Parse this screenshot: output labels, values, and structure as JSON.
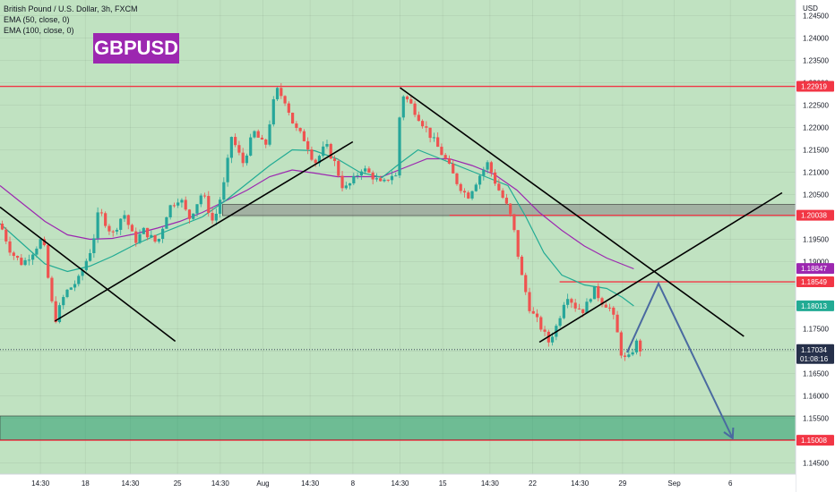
{
  "chart_data": {
    "type": "candlestick",
    "title": "British Pound / U.S. Dollar, 3h, FXCM",
    "symbol_badge": "GBPUSD",
    "indicators": [
      "EMA (50, close, 0)",
      "EMA (100, close, 0)"
    ],
    "currency_label": "USD",
    "y_ticks": [
      1.245,
      1.24,
      1.235,
      1.23,
      1.225,
      1.22,
      1.215,
      1.21,
      1.205,
      1.2,
      1.195,
      1.19,
      1.185,
      1.18,
      1.175,
      1.17,
      1.165,
      1.16,
      1.155,
      1.15,
      1.145
    ],
    "y_tick_labels": [
      "1.24500",
      "1.24000",
      "1.23500",
      "1.23000",
      "1.22500",
      "1.22000",
      "1.21500",
      "1.21000",
      "1.20500",
      "1.20000",
      "1.19500",
      "1.19000",
      "1.18500",
      "1.18000",
      "1.17500",
      "1.17000",
      "1.16500",
      "1.16000",
      "1.15500",
      "1.15000",
      "1.14500"
    ],
    "ylim": [
      1.1425,
      1.2485
    ],
    "x_ticks": [
      {
        "label": "14:30",
        "t": 0.9
      },
      {
        "label": "18",
        "t": 1.9
      },
      {
        "label": "14:30",
        "t": 2.9
      },
      {
        "label": "25",
        "t": 3.95
      },
      {
        "label": "14:30",
        "t": 4.9
      },
      {
        "label": "Aug",
        "t": 5.85
      },
      {
        "label": "14:30",
        "t": 6.9
      },
      {
        "label": "8",
        "t": 7.85
      },
      {
        "label": "14:30",
        "t": 8.9
      },
      {
        "label": "15",
        "t": 9.85
      },
      {
        "label": "14:30",
        "t": 10.9
      },
      {
        "label": "22",
        "t": 11.85
      },
      {
        "label": "14:30",
        "t": 12.9
      },
      {
        "label": "29",
        "t": 13.85
      },
      {
        "label": "Sep",
        "t": 15.0
      },
      {
        "label": "6",
        "t": 16.25
      }
    ],
    "xlim": [
      0,
      17.7
    ],
    "price_levels": [
      {
        "label": "1.22919",
        "value": 1.22919,
        "color": "#f23645"
      },
      {
        "label": "1.20038",
        "value": 1.20038,
        "color": "#f23645"
      },
      {
        "label": "1.18847",
        "value": 1.18847,
        "color": "#9c27b0"
      },
      {
        "label": "1.18549",
        "value": 1.18549,
        "color": "#f23645"
      },
      {
        "label": "1.18013",
        "value": 1.18013,
        "color": "#22ab94"
      },
      {
        "label": "1.17034",
        "value": 1.17034,
        "color": "#26304a"
      },
      {
        "label": "1.15008",
        "value": 1.15008,
        "color": "#f23645"
      }
    ],
    "countdown": "01:08:16",
    "horizontal_lines": [
      {
        "value": 1.22919,
        "t0": 0,
        "t1": 17.7
      },
      {
        "value": 1.20038,
        "t0": 10.0,
        "t1": 17.7
      },
      {
        "value": 1.18549,
        "t0": 12.45,
        "t1": 17.7
      },
      {
        "value": 1.15008,
        "t0": 0,
        "t1": 17.7
      }
    ],
    "zones": [
      {
        "from": 1.2003,
        "to": 1.2028,
        "t0": 4.95,
        "t1": 17.7,
        "color": "#888888"
      },
      {
        "from": 1.1502,
        "to": 1.1555,
        "t0": 0,
        "t1": 17.7,
        "color": "#2a9d6f"
      }
    ],
    "trend_lines": [
      {
        "t0": 0.0,
        "p0": 1.2022,
        "t1": 3.9,
        "p1": 1.1722
      },
      {
        "t0": 1.22,
        "p0": 1.1767,
        "t1": 7.85,
        "p1": 1.2168
      },
      {
        "t0": 8.9,
        "p0": 1.2289,
        "t1": 16.55,
        "p1": 1.1733
      },
      {
        "t0": 12.0,
        "p0": 1.172,
        "t1": 17.4,
        "p1": 1.2054
      }
    ],
    "projection": [
      {
        "t": 13.95,
        "p": 1.1697
      },
      {
        "t": 14.65,
        "p": 1.1851
      },
      {
        "t": 16.3,
        "p": 1.1505
      }
    ],
    "ema50": [
      [
        0.0,
        1.1985
      ],
      [
        0.5,
        1.194
      ],
      [
        1.0,
        1.1895
      ],
      [
        1.5,
        1.1878
      ],
      [
        2.0,
        1.189
      ],
      [
        2.5,
        1.1912
      ],
      [
        3.0,
        1.1938
      ],
      [
        3.5,
        1.196
      ],
      [
        4.0,
        1.198
      ],
      [
        4.5,
        1.2
      ],
      [
        5.0,
        1.2035
      ],
      [
        5.5,
        1.2075
      ],
      [
        6.0,
        1.2115
      ],
      [
        6.5,
        1.215
      ],
      [
        7.0,
        1.2148
      ],
      [
        7.5,
        1.213
      ],
      [
        8.0,
        1.21
      ],
      [
        8.5,
        1.2088
      ],
      [
        8.9,
        1.212
      ],
      [
        9.3,
        1.215
      ],
      [
        9.8,
        1.213
      ],
      [
        10.3,
        1.211
      ],
      [
        10.8,
        1.209
      ],
      [
        11.3,
        1.207
      ],
      [
        11.7,
        1.2
      ],
      [
        12.1,
        1.192
      ],
      [
        12.5,
        1.187
      ],
      [
        13.0,
        1.1848
      ],
      [
        13.5,
        1.184
      ],
      [
        13.85,
        1.182
      ],
      [
        14.1,
        1.1801
      ]
    ],
    "ema100": [
      [
        0.0,
        1.207
      ],
      [
        0.5,
        1.203
      ],
      [
        1.0,
        1.199
      ],
      [
        1.5,
        1.196
      ],
      [
        2.0,
        1.195
      ],
      [
        2.5,
        1.1952
      ],
      [
        3.0,
        1.1962
      ],
      [
        3.5,
        1.1975
      ],
      [
        4.0,
        1.199
      ],
      [
        4.5,
        1.201
      ],
      [
        5.0,
        1.2035
      ],
      [
        5.5,
        1.206
      ],
      [
        6.0,
        1.209
      ],
      [
        6.5,
        1.2105
      ],
      [
        7.0,
        1.2098
      ],
      [
        7.5,
        1.209
      ],
      [
        8.0,
        1.209
      ],
      [
        8.5,
        1.209
      ],
      [
        9.0,
        1.211
      ],
      [
        9.5,
        1.213
      ],
      [
        10.0,
        1.213
      ],
      [
        10.5,
        1.2115
      ],
      [
        11.0,
        1.2095
      ],
      [
        11.5,
        1.206
      ],
      [
        12.0,
        1.201
      ],
      [
        12.5,
        1.197
      ],
      [
        13.0,
        1.1935
      ],
      [
        13.5,
        1.1908
      ],
      [
        14.1,
        1.1884
      ]
    ],
    "price_path": [
      [
        0.0,
        1.1985
      ],
      [
        0.25,
        1.192
      ],
      [
        0.5,
        1.1895
      ],
      [
        0.75,
        1.1925
      ],
      [
        0.95,
        1.1955
      ],
      [
        1.1,
        1.184
      ],
      [
        1.22,
        1.1767
      ],
      [
        1.45,
        1.183
      ],
      [
        1.75,
        1.186
      ],
      [
        2.05,
        1.1935
      ],
      [
        2.2,
        1.2015
      ],
      [
        2.5,
        1.196
      ],
      [
        2.75,
        1.201
      ],
      [
        3.0,
        1.1945
      ],
      [
        3.2,
        1.197
      ],
      [
        3.5,
        1.194
      ],
      [
        3.75,
        1.202
      ],
      [
        4.0,
        1.2045
      ],
      [
        4.2,
        1.1995
      ],
      [
        4.5,
        1.2055
      ],
      [
        4.75,
        1.1985
      ],
      [
        5.0,
        1.208
      ],
      [
        5.15,
        1.218
      ],
      [
        5.4,
        1.212
      ],
      [
        5.65,
        1.219
      ],
      [
        5.9,
        1.2155
      ],
      [
        6.05,
        1.224
      ],
      [
        6.15,
        1.2285
      ],
      [
        6.35,
        1.226
      ],
      [
        6.55,
        1.22
      ],
      [
        6.8,
        1.217
      ],
      [
        7.0,
        1.212
      ],
      [
        7.25,
        1.216
      ],
      [
        7.45,
        1.212
      ],
      [
        7.65,
        1.206
      ],
      [
        7.85,
        1.208
      ],
      [
        8.05,
        1.211
      ],
      [
        8.3,
        1.209
      ],
      [
        8.5,
        1.207
      ],
      [
        8.7,
        1.2095
      ],
      [
        8.82,
        1.209
      ],
      [
        8.92,
        1.228
      ],
      [
        9.15,
        1.225
      ],
      [
        9.4,
        1.221
      ],
      [
        9.65,
        1.217
      ],
      [
        9.9,
        1.213
      ],
      [
        10.15,
        1.208
      ],
      [
        10.4,
        1.2045
      ],
      [
        10.65,
        1.209
      ],
      [
        10.85,
        1.212
      ],
      [
        11.05,
        1.207
      ],
      [
        11.25,
        1.203
      ],
      [
        11.4,
        1.199
      ],
      [
        11.6,
        1.187
      ],
      [
        11.8,
        1.179
      ],
      [
        12.0,
        1.176
      ],
      [
        12.2,
        1.172
      ],
      [
        12.4,
        1.176
      ],
      [
        12.6,
        1.183
      ],
      [
        12.8,
        1.18
      ],
      [
        13.0,
        1.179
      ],
      [
        13.2,
        1.184
      ],
      [
        13.4,
        1.181
      ],
      [
        13.55,
        1.18
      ],
      [
        13.7,
        1.176
      ],
      [
        13.8,
        1.17
      ],
      [
        13.95,
        1.1675
      ],
      [
        14.15,
        1.172
      ],
      [
        14.25,
        1.1703
      ]
    ]
  }
}
